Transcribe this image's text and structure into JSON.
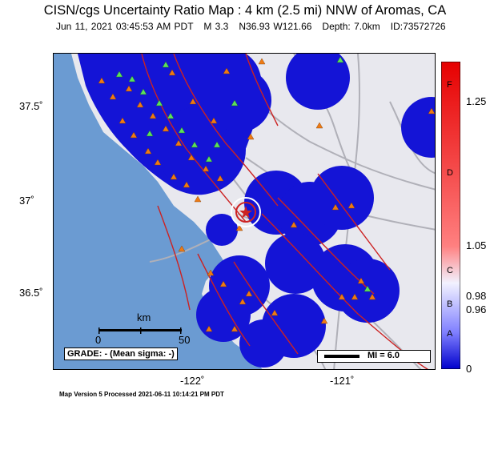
{
  "header": {
    "title": "CISN/cgs Uncertainty Ratio Map : 4 km (2.5 mi) NNW of Aromas, CA",
    "subtitle": "Jun 11, 2021 03:45:53 AM PDT   M 3.3   N36.93 W121.66   Depth: 7.0km   ID:73572726"
  },
  "axes": {
    "y_ticks": [
      "37.5˚",
      "37˚",
      "36.5˚"
    ],
    "x_ticks": [
      "-122˚",
      "-121˚"
    ]
  },
  "scale_bar": {
    "unit": "km",
    "start": "0",
    "end": "50"
  },
  "grade": "GRADE: - (Mean sigma: -)",
  "mi_legend": "MI = 6.0",
  "colorbar": {
    "letters": [
      "F",
      "D",
      "C",
      "B",
      "A"
    ],
    "values": [
      "1.25",
      "1.05",
      "0.98",
      "0.96",
      "0"
    ],
    "colors": {
      "top": "#e60000",
      "upper": "#ff8080",
      "mid": "#f2f2ff",
      "lower": "#8080ff",
      "bottom": "#0000cc"
    }
  },
  "map": {
    "colors": {
      "ocean": "#6b9bd2",
      "land": "#e8e8ee",
      "uncertainty": "#1414d6",
      "roads": "#b0b0b8",
      "faults": "#cc2222",
      "station_orange": "#ee7a14",
      "station_green": "#5ce05c"
    }
  },
  "footer": "Map Version 5 Processed 2021-06-11 10:14:21 PM PDT"
}
